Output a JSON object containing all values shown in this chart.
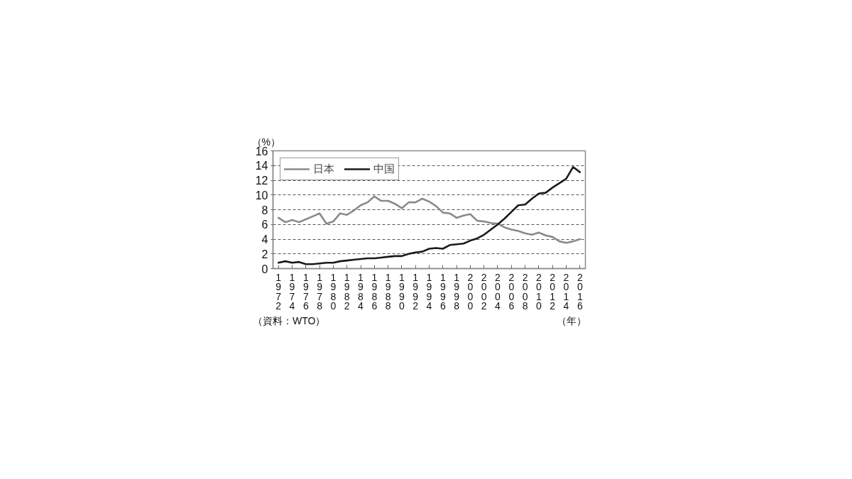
{
  "chart_data": {
    "type": "line",
    "x": [
      1972,
      1973,
      1974,
      1975,
      1976,
      1977,
      1978,
      1979,
      1980,
      1981,
      1982,
      1983,
      1984,
      1985,
      1986,
      1987,
      1988,
      1989,
      1990,
      1991,
      1992,
      1993,
      1994,
      1995,
      1996,
      1997,
      1998,
      1999,
      2000,
      2001,
      2002,
      2003,
      2004,
      2005,
      2006,
      2007,
      2008,
      2009,
      2010,
      2011,
      2012,
      2013,
      2014,
      2015,
      2016
    ],
    "series": [
      {
        "name": "日本",
        "color": "#8a8a8a",
        "values": [
          6.9,
          6.3,
          6.6,
          6.3,
          6.7,
          7.1,
          7.5,
          6.1,
          6.4,
          7.5,
          7.3,
          7.9,
          8.6,
          9.0,
          9.8,
          9.2,
          9.2,
          8.8,
          8.2,
          9.0,
          9.0,
          9.5,
          9.1,
          8.5,
          7.6,
          7.5,
          6.9,
          7.2,
          7.4,
          6.5,
          6.4,
          6.2,
          6.1,
          5.6,
          5.3,
          5.1,
          4.8,
          4.6,
          4.9,
          4.5,
          4.3,
          3.7,
          3.5,
          3.7,
          4.0
        ]
      },
      {
        "name": "中国",
        "color": "#1a1a1a",
        "values": [
          0.8,
          1.0,
          0.8,
          0.9,
          0.6,
          0.6,
          0.7,
          0.8,
          0.8,
          1.0,
          1.1,
          1.2,
          1.3,
          1.4,
          1.4,
          1.5,
          1.6,
          1.7,
          1.7,
          2.0,
          2.2,
          2.3,
          2.7,
          2.8,
          2.7,
          3.2,
          3.3,
          3.4,
          3.8,
          4.1,
          4.6,
          5.3,
          6.0,
          6.8,
          7.7,
          8.6,
          8.7,
          9.5,
          10.2,
          10.3,
          11.0,
          11.6,
          12.2,
          13.8,
          13.1
        ]
      }
    ],
    "xlim": [
      1971.2,
      2016.8
    ],
    "xticks": [
      1972,
      1974,
      1976,
      1978,
      1980,
      1982,
      1984,
      1986,
      1988,
      1990,
      1992,
      1994,
      1996,
      1998,
      2000,
      2002,
      2004,
      2006,
      2008,
      2010,
      2012,
      2014,
      2016
    ],
    "ylim": [
      0,
      16
    ],
    "yticks": [
      0,
      2,
      4,
      6,
      8,
      10,
      12,
      14,
      16
    ],
    "ylabel": "（%）",
    "xlabel": "（年）",
    "annotations": [
      "（資料：WTO）"
    ],
    "grid": "y",
    "legend": "top left",
    "line_style": "solid"
  }
}
